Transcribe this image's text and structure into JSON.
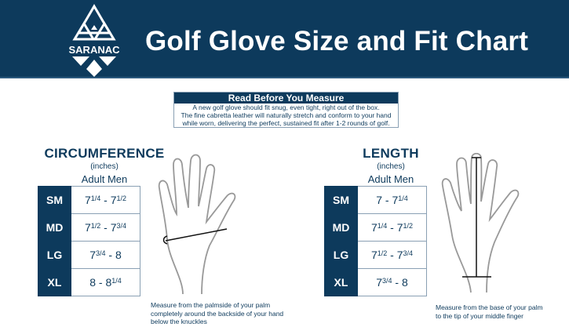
{
  "header": {
    "brand": "SARANAC",
    "title": "Golf Glove Size and Fit Chart",
    "colors": {
      "navy": "#0d3a5c"
    }
  },
  "notice": {
    "title": "Read Before You Measure",
    "lines": [
      "A new golf glove should fit snug, even tight, right out of the box.",
      "The fine cabretta leather will naturally stretch and conform to your hand",
      "while worn, delivering the perfect, sustained fit after 1-2 rounds of golf."
    ]
  },
  "circumference": {
    "title": "CIRCUMFERENCE",
    "unit": "(inches)",
    "group": "Adult Men",
    "rows": [
      {
        "size": "SM",
        "a": "7",
        "af": "1/4",
        "b": "7",
        "bf": "1/2"
      },
      {
        "size": "MD",
        "a": "7",
        "af": "1/2",
        "b": "7",
        "bf": "3/4"
      },
      {
        "size": "LG",
        "a": "7",
        "af": "3/4",
        "b": "8",
        "bf": ""
      },
      {
        "size": "XL",
        "a": "8",
        "af": "",
        "b": "8",
        "bf": "1/4"
      }
    ],
    "caption": [
      "Measure from the palmside of your palm",
      "completely around the backside of your hand",
      "below the knuckles"
    ]
  },
  "length": {
    "title": "LENGTH",
    "unit": "(inches)",
    "group": "Adult Men",
    "rows": [
      {
        "size": "SM",
        "a": "7",
        "af": "",
        "b": "7",
        "bf": "1/4"
      },
      {
        "size": "MD",
        "a": "7",
        "af": "1/4",
        "b": "7",
        "bf": "1/2"
      },
      {
        "size": "LG",
        "a": "7",
        "af": "1/2",
        "b": "7",
        "bf": "3/4"
      },
      {
        "size": "XL",
        "a": "7",
        "af": "3/4",
        "b": "8",
        "bf": ""
      }
    ],
    "caption": [
      "Measure from the base of your palm",
      "to the tip of your middle finger"
    ]
  }
}
